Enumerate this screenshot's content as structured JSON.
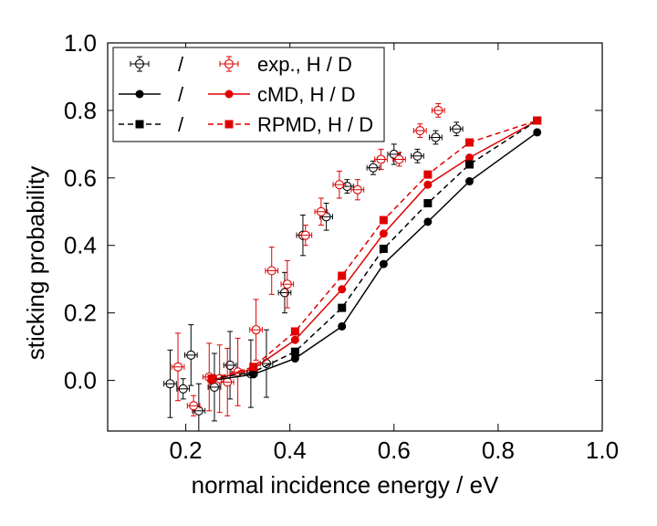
{
  "chart_data": {
    "type": "scatter",
    "title": "",
    "xlabel": "normal incidence energy / eV",
    "ylabel": "sticking probability",
    "xlim": [
      0.05,
      1.0
    ],
    "ylim": [
      -0.15,
      1.0
    ],
    "xticks": [
      0.2,
      0.4,
      0.6,
      0.8,
      1.0
    ],
    "xtick_labels": [
      "0.2",
      "0.4",
      "0.6",
      "0.8",
      "1.0"
    ],
    "yticks": [
      0.0,
      0.2,
      0.4,
      0.6,
      0.8,
      1.0
    ],
    "ytick_labels": [
      "0.0",
      "0.2",
      "0.4",
      "0.6",
      "0.8",
      "1.0"
    ],
    "grid": false,
    "legend": {
      "position": "top-left",
      "separator": "/",
      "labels": [
        "exp., H / D",
        "cMD, H / D",
        "RPMD, H / D"
      ]
    },
    "colors": {
      "H": "#000000",
      "D": "#e00000"
    },
    "series": [
      {
        "name": "exp. H",
        "kind": "exp",
        "color": "#000000",
        "x": [
          0.17,
          0.195,
          0.21,
          0.225,
          0.255,
          0.285,
          0.325,
          0.355,
          0.39,
          0.425,
          0.47,
          0.51,
          0.56,
          0.6,
          0.645,
          0.68,
          0.72
        ],
        "y": [
          -0.01,
          -0.025,
          0.075,
          -0.09,
          -0.02,
          0.045,
          0.02,
          0.05,
          0.26,
          0.43,
          0.485,
          0.575,
          0.63,
          0.67,
          0.665,
          0.72,
          0.745
        ],
        "yerr": [
          0.1,
          0.03,
          0.09,
          0.08,
          0.1,
          0.1,
          0.1,
          0.1,
          0.06,
          0.06,
          0.04,
          0.02,
          0.02,
          0.03,
          0.02,
          0.02,
          0.02
        ],
        "xerr": [
          0.012,
          0.012,
          0.012,
          0.012,
          0.012,
          0.012,
          0.012,
          0.012,
          0.012,
          0.012,
          0.012,
          0.012,
          0.012,
          0.012,
          0.012,
          0.012,
          0.012
        ]
      },
      {
        "name": "exp. D",
        "kind": "exp",
        "color": "#e00000",
        "x": [
          0.185,
          0.215,
          0.245,
          0.265,
          0.28,
          0.3,
          0.335,
          0.365,
          0.395,
          0.43,
          0.46,
          0.495,
          0.53,
          0.575,
          0.61,
          0.65,
          0.685
        ],
        "y": [
          0.04,
          -0.075,
          0.01,
          0.005,
          -0.005,
          0.025,
          0.15,
          0.325,
          0.285,
          0.43,
          0.5,
          0.58,
          0.565,
          0.655,
          0.655,
          0.74,
          0.8
        ],
        "yerr": [
          0.1,
          0.03,
          0.1,
          0.1,
          0.1,
          0.1,
          0.09,
          0.07,
          0.07,
          0.03,
          0.04,
          0.04,
          0.03,
          0.03,
          0.02,
          0.02,
          0.02
        ],
        "xerr": [
          0.012,
          0.012,
          0.012,
          0.012,
          0.012,
          0.012,
          0.012,
          0.012,
          0.012,
          0.012,
          0.012,
          0.012,
          0.012,
          0.012,
          0.012,
          0.012,
          0.012
        ]
      },
      {
        "name": "cMD H",
        "kind": "cmd",
        "color": "#000000",
        "x": [
          0.25,
          0.33,
          0.41,
          0.5,
          0.58,
          0.665,
          0.745,
          0.875
        ],
        "y": [
          0.0,
          0.018,
          0.065,
          0.16,
          0.345,
          0.47,
          0.59,
          0.735
        ]
      },
      {
        "name": "cMD D",
        "kind": "cmd",
        "color": "#e00000",
        "x": [
          0.25,
          0.33,
          0.41,
          0.5,
          0.58,
          0.665,
          0.745,
          0.875
        ],
        "y": [
          0.0,
          0.035,
          0.12,
          0.27,
          0.435,
          0.58,
          0.66,
          0.77
        ]
      },
      {
        "name": "RPMD H",
        "kind": "rpmd",
        "color": "#000000",
        "x": [
          0.25,
          0.33,
          0.41,
          0.5,
          0.58,
          0.665,
          0.745,
          0.875
        ],
        "y": [
          0.005,
          0.025,
          0.085,
          0.215,
          0.39,
          0.525,
          0.64,
          0.77
        ]
      },
      {
        "name": "RPMD D",
        "kind": "rpmd",
        "color": "#e00000",
        "x": [
          0.25,
          0.33,
          0.41,
          0.5,
          0.58,
          0.665,
          0.745,
          0.875
        ],
        "y": [
          0.005,
          0.04,
          0.145,
          0.31,
          0.475,
          0.61,
          0.705,
          0.77
        ]
      }
    ]
  }
}
